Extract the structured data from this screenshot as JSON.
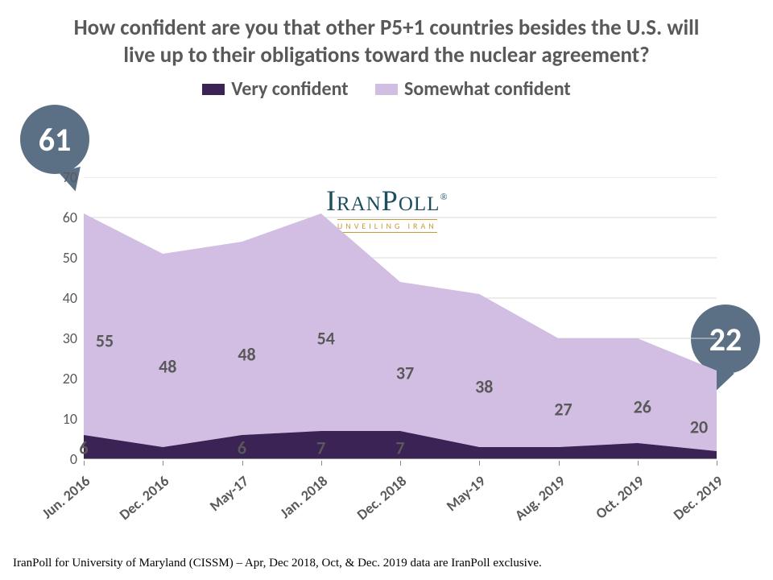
{
  "title": "How confident are you that other P5+1 countries besides the U.S. will live up to their obligations toward the nuclear agreement?",
  "legend": {
    "very": {
      "label": "Very confident",
      "color": "#3b2356"
    },
    "somewhat": {
      "label": "Somewhat confident",
      "color": "#d2bee3"
    }
  },
  "chart": {
    "type": "area-stacked",
    "background_color": "#ffffff",
    "ylim": [
      0,
      70
    ],
    "ytick_step": 10,
    "grid_color": "#d9d9d9",
    "axis_color": "#888888",
    "label_fontsize": 22,
    "tick_fontsize": 18,
    "categories": [
      "Jun. 2016",
      "Dec. 2016",
      "May-17",
      "Jan. 2018",
      "Dec. 2018",
      "May-19",
      "Aug. 2019",
      "Oct. 2019",
      "Dec. 2019"
    ],
    "series": {
      "very": [
        6,
        3,
        6,
        7,
        7,
        3,
        3,
        4,
        2
      ],
      "somewhat": [
        55,
        48,
        48,
        54,
        37,
        38,
        27,
        26,
        20
      ]
    },
    "data_labels": {
      "very": [
        "6",
        "",
        "6",
        "7",
        "7",
        "",
        "",
        "",
        ""
      ],
      "somewhat": [
        "55",
        "48",
        "48",
        "54",
        "37",
        "38",
        "27",
        "26",
        "20"
      ]
    }
  },
  "callouts": {
    "start": "61",
    "end": "22",
    "color": "#5b7085",
    "text_color": "#ffffff"
  },
  "logo": {
    "main": "IRANPOLL",
    "sub": "UNVEILING IRAN"
  },
  "footnote": "IranPoll for University of Maryland (CISSM) – Apr, Dec 2018, Oct, & Dec. 2019 data are IranPoll exclusive."
}
